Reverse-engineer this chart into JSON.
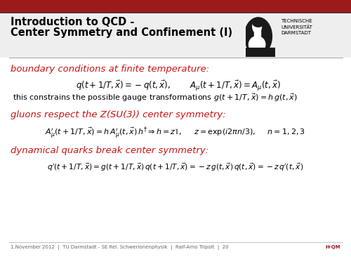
{
  "bg_color": "#f5f5f5",
  "title_bg_color": "#f0f0f0",
  "red_bar_color": "#9b1a1a",
  "section1_color": "#cc1111",
  "section2_color": "#cc1111",
  "section3_color": "#cc1111",
  "title_line1": "Introduction to QCD -",
  "title_line2": "Center Symmetry and Confinement (I)",
  "section1_text": "boundary conditions at finite temperature:",
  "eq1a": "$q(t + 1/T, \\vec{x}) = -q(t, \\vec{x})$,",
  "eq1b": "$A_{\\mu}(t + 1/T, \\vec{x}) = A_{\\mu}(t, \\vec{x})$",
  "text1": "this constrains the possible gauge transformations $g(t + 1/T, \\vec{x}) = h\\, g(t, \\vec{x})$",
  "section2_text": "gluons respect the Z(SU(3)) center symmetry:",
  "eq2": "$A^{\\prime}_{\\mu}(t + 1/T, \\vec{x}) = h\\,A^{\\prime}_{\\mu}(t, \\vec{x})\\,h^{\\dagger} \\Rightarrow h = z\\mathbb{1}$,     $z = \\exp(i2\\pi n/3)$,     $n = 1, 2, 3$",
  "section3_text": "dynamical quarks break center symmetry:",
  "eq3": "$q^{\\prime}(t + 1/T, \\vec{x}) = g(t + 1/T, \\vec{x})\\,q(t + 1/T, \\vec{x}) = -z\\,g(t, \\vec{x})\\,q(t, \\vec{x}) = -z\\,q^{\\prime}(t, \\vec{x})$",
  "footer_text": "1.November 2012  |  TU Darmstadt - SE Rel. Schwerionenphysik  |  Ralf-Arno Tripolt  |  20",
  "footer_right": "H-QM",
  "logo_text": "TECHNISCHE\nUNIVERSITÄT\nDARMSTADT",
  "separator_color": "#aaaaaa",
  "footer_sep_color": "#aaaaaa",
  "title_fontsize": 10.5,
  "body_fontsize": 8.5,
  "eq_fontsize": 8.5,
  "section_fontsize": 9.5,
  "footer_fontsize": 5.0
}
